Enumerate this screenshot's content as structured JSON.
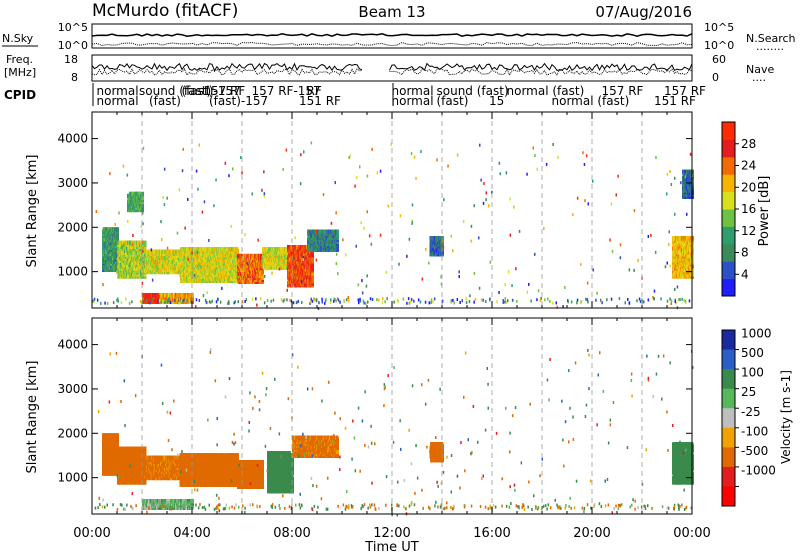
{
  "header": {
    "station": "McMurdo (fitACF)",
    "beam": "Beam 13",
    "date": "07/Aug/2016"
  },
  "colors": {
    "power_scale": [
      "#1e1eff",
      "#2b50c8",
      "#3b8a5a",
      "#2e9e6e",
      "#6ec241",
      "#d8e01c",
      "#f6b400",
      "#f26a00",
      "#e41e1e",
      "#ff2a00"
    ],
    "velocity_scale": [
      "#1a2a9e",
      "#2a5fc8",
      "#3a8a4c",
      "#55b85a",
      "#bebebe",
      "#f2a200",
      "#e06a00",
      "#e41e1e",
      "#ff0000"
    ],
    "ground": "#bebebe"
  },
  "chart_data": [
    {
      "type": "line",
      "panel": "noise",
      "left_label": "N.Sky",
      "right_label": "N.Search",
      "right_legend_marker": "........",
      "left_ticks": [
        "10^5",
        "10^0"
      ],
      "right_ticks": [
        "10^5",
        "10^0"
      ],
      "x_range_hours": [
        0,
        24
      ]
    },
    {
      "type": "line",
      "panel": "frequency",
      "left_label_line1": "Freq.",
      "left_label_line2": "[MHz]",
      "right_label": "Nave",
      "right_legend_marker": "....",
      "left_ticks": [
        18,
        8
      ],
      "right_ticks": [
        60,
        0
      ],
      "x_range_hours": [
        0,
        24
      ]
    },
    {
      "type": "table",
      "panel": "cpid",
      "label": "CPID",
      "entries": [
        {
          "start_hour": 0.1,
          "row": 0,
          "text": "normal"
        },
        {
          "start_hour": 0.1,
          "row": 1,
          "text": "normal"
        },
        {
          "start_hour": 1.8,
          "row": 0,
          "text": "sound (fast)"
        },
        {
          "start_hour": 2.2,
          "row": 1,
          "text": "(fast)"
        },
        {
          "start_hour": 3.5,
          "row": 0,
          "text": "(fast)-157"
        },
        {
          "start_hour": 4.2,
          "row": 0,
          "text": "-157 RF"
        },
        {
          "start_hour": 4.6,
          "row": 1,
          "text": "(fast)-157"
        },
        {
          "start_hour": 6.3,
          "row": 0,
          "text": "157 RF-157"
        },
        {
          "start_hour": 8.5,
          "row": 0,
          "text": "RF"
        },
        {
          "start_hour": 8.2,
          "row": 1,
          "text": "151 RF"
        },
        {
          "start_hour": 11.9,
          "row": 0,
          "text": "normal"
        },
        {
          "start_hour": 11.9,
          "row": 1,
          "text": "normal"
        },
        {
          "start_hour": 13.7,
          "row": 0,
          "text": "sound (fast)"
        },
        {
          "start_hour": 13.7,
          "row": 1,
          "text": "(fast)"
        },
        {
          "start_hour": 15.8,
          "row": 1,
          "text": "15"
        },
        {
          "start_hour": 16.5,
          "row": 0,
          "text": "normal (fast)"
        },
        {
          "start_hour": 18.3,
          "row": 1,
          "text": "normal (fast)"
        },
        {
          "start_hour": 20.3,
          "row": 0,
          "text": "157 RF"
        },
        {
          "start_hour": 22.8,
          "row": 0,
          "text": "157 RF"
        },
        {
          "start_hour": 22.4,
          "row": 1,
          "text": "151 RF"
        }
      ]
    },
    {
      "type": "heatmap",
      "panel": "power",
      "ylabel": "Slant Range [km]",
      "y_range_km": [
        180,
        4600
      ],
      "y_ticks": [
        1000,
        2000,
        3000,
        4000
      ],
      "colorbar_label": "Power [dB]",
      "colorbar_ticks": [
        4,
        8,
        12,
        16,
        20,
        24,
        28
      ],
      "colorbar_range": [
        0,
        32
      ],
      "x_range_hours": [
        0,
        24
      ],
      "dashed_gridlines_hours": [
        2,
        4,
        6,
        8,
        12,
        14,
        16,
        18,
        20,
        22
      ],
      "regions": [
        {
          "t0": 0.4,
          "t1": 1.0,
          "r0": 1050,
          "r1": 2000,
          "value": 10
        },
        {
          "t0": 1.0,
          "t1": 2.1,
          "r0": 900,
          "r1": 1700,
          "value": 16
        },
        {
          "t0": 1.4,
          "t1": 2.0,
          "r0": 2400,
          "r1": 2800,
          "value": 12
        },
        {
          "t0": 2.1,
          "t1": 3.5,
          "r0": 1000,
          "r1": 1500,
          "value": 18
        },
        {
          "t0": 2.0,
          "t1": 4.0,
          "r0": 330,
          "r1": 520,
          "value": 22
        },
        {
          "t0": 2.0,
          "t1": 2.6,
          "r0": 330,
          "r1": 520,
          "value": 29
        },
        {
          "t0": 3.5,
          "t1": 5.8,
          "r0": 800,
          "r1": 1550,
          "value": 18
        },
        {
          "t0": 5.8,
          "t1": 6.8,
          "r0": 780,
          "r1": 1400,
          "value": 24
        },
        {
          "t0": 6.8,
          "t1": 8.0,
          "r0": 1100,
          "r1": 1550,
          "value": 18
        },
        {
          "t0": 7.8,
          "t1": 8.8,
          "r0": 700,
          "r1": 1600,
          "value": 26
        },
        {
          "t0": 8.6,
          "t1": 9.8,
          "r0": 1500,
          "r1": 1950,
          "value": 8
        },
        {
          "t0": 13.5,
          "t1": 14.0,
          "r0": 1400,
          "r1": 1800,
          "value": 6
        },
        {
          "t0": 23.2,
          "t1": 24.0,
          "r0": 900,
          "r1": 1800,
          "value": 20
        },
        {
          "t0": 23.6,
          "t1": 24.0,
          "r0": 2700,
          "r1": 3300,
          "value": 6
        }
      ]
    },
    {
      "type": "heatmap",
      "panel": "velocity",
      "ylabel": "Slant Range [km]",
      "y_range_km": [
        180,
        4600
      ],
      "y_ticks": [
        1000,
        2000,
        3000,
        4000
      ],
      "colorbar_label": "Velocity [m s-1]",
      "colorbar_ticks": [
        "1000",
        "500",
        "100",
        "25",
        "-25",
        "-100",
        "-500",
        "-1000"
      ],
      "x_range_hours": [
        0,
        24
      ],
      "x_ticks": [
        "00:00",
        "04:00",
        "08:00",
        "12:00",
        "16:00",
        "20:00",
        "00:00"
      ],
      "xlabel": "Time UT",
      "dashed_gridlines_hours": [
        2,
        4,
        6,
        8,
        12,
        14,
        16,
        18,
        20,
        22
      ],
      "regions": [
        {
          "t0": 0.4,
          "t1": 1.0,
          "r0": 1100,
          "r1": 2000,
          "value": -300
        },
        {
          "t0": 1.0,
          "t1": 2.1,
          "r0": 900,
          "r1": 1700,
          "value": -200
        },
        {
          "t0": 2.1,
          "t1": 3.5,
          "r0": 1000,
          "r1": 1500,
          "value": -150
        },
        {
          "t0": 2.0,
          "t1": 4.0,
          "r0": 330,
          "r1": 520,
          "value": 60
        },
        {
          "t0": 3.5,
          "t1": 5.8,
          "r0": 850,
          "r1": 1550,
          "value": -250
        },
        {
          "t0": 5.8,
          "t1": 6.8,
          "r0": 800,
          "r1": 1400,
          "value": -400
        },
        {
          "t0": 7.0,
          "t1": 8.0,
          "r0": 700,
          "r1": 1600,
          "value": 300
        },
        {
          "t0": 8.0,
          "t1": 9.8,
          "r0": 1500,
          "r1": 1950,
          "value": -150
        },
        {
          "t0": 13.5,
          "t1": 14.0,
          "r0": 1400,
          "r1": 1800,
          "value": -300
        },
        {
          "t0": 23.2,
          "t1": 24.0,
          "r0": 900,
          "r1": 1800,
          "value": 200
        }
      ]
    }
  ]
}
